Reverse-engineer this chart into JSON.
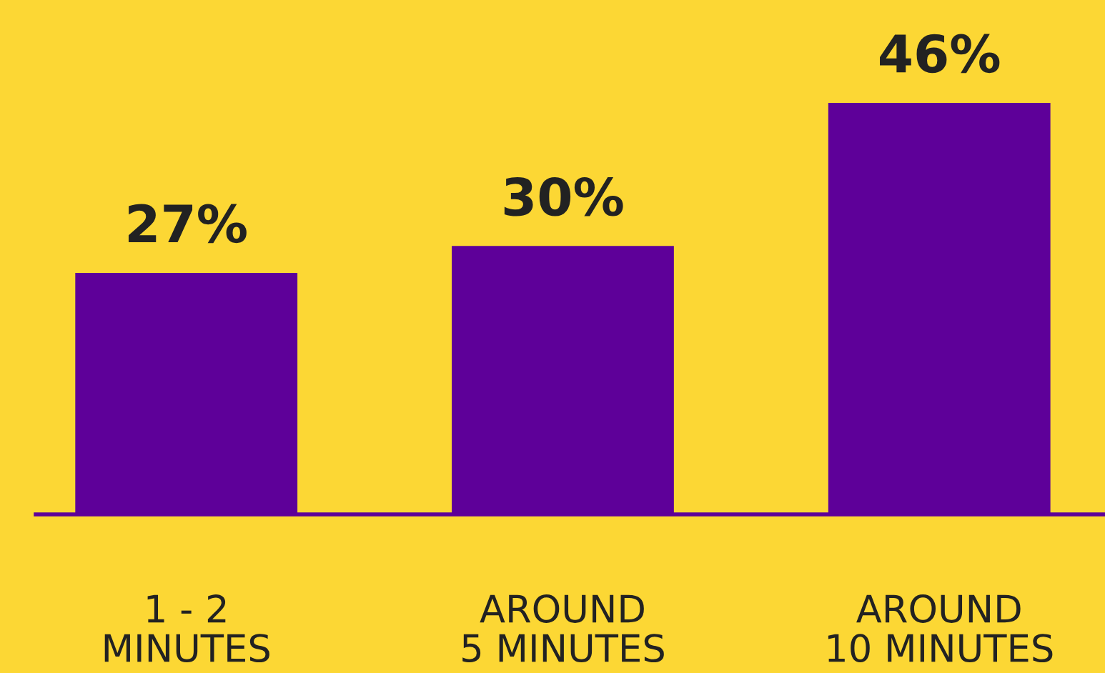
{
  "chart_data": {
    "type": "bar",
    "categories": [
      "1 - 2\nMINUTES",
      "AROUND\n5 MINUTES",
      "AROUND\n10 MINUTES"
    ],
    "values": [
      27,
      30,
      46
    ],
    "value_labels": [
      "27%",
      "30%",
      "46%"
    ],
    "color": "#5e0099",
    "grid": false,
    "legend": false
  }
}
